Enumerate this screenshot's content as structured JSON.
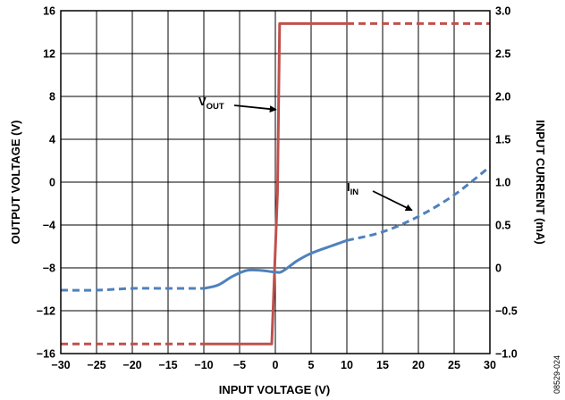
{
  "chart_data": {
    "type": "line",
    "title": "",
    "xlabel": "INPUT VOLTAGE (V)",
    "ylabel": "OUTPUT VOLTAGE (V)",
    "y2label": "INPUT CURRENT (mA)",
    "xlim": [
      -30,
      30
    ],
    "ylim": [
      -16,
      16
    ],
    "y2lim": [
      -1.0,
      3.0
    ],
    "grid": true,
    "x_ticks": [
      "−30",
      "−25",
      "−20",
      "−15",
      "−10",
      "−5",
      "0",
      "5",
      "10",
      "15",
      "20",
      "25",
      "30"
    ],
    "y_ticks": [
      "−16",
      "−12",
      "−8",
      "−4",
      "0",
      "4",
      "8",
      "12",
      "16"
    ],
    "y2_ticks": [
      "−1.0",
      "−0.5",
      "0",
      "0.5",
      "1.0",
      "1.5",
      "2.0",
      "2.5",
      "3.0"
    ],
    "series": [
      {
        "name": "VOUT",
        "axis": "left",
        "color": "#c0504d",
        "solid_range": [
          -10,
          10
        ],
        "x": [
          -30,
          -0.5,
          0.3,
          0.6,
          30
        ],
        "y": [
          -15.1,
          -15.1,
          -1.0,
          14.8,
          14.8
        ]
      },
      {
        "name": "IIN",
        "axis": "right",
        "color": "#4f81bd",
        "solid_range": [
          -10,
          10
        ],
        "x": [
          -30,
          -25,
          -20,
          -15,
          -10,
          -8,
          -6,
          -4,
          -2,
          0,
          1,
          3,
          5,
          8,
          10,
          15,
          20,
          25,
          30
        ],
        "y": [
          -0.26,
          -0.26,
          -0.24,
          -0.24,
          -0.24,
          -0.2,
          -0.1,
          -0.03,
          -0.03,
          -0.05,
          -0.04,
          0.08,
          0.17,
          0.26,
          0.32,
          0.42,
          0.6,
          0.85,
          1.18
        ]
      }
    ],
    "annotations": [
      {
        "label": "V",
        "sub": "OUT",
        "target_x": 0.6,
        "target_y": 6.6,
        "axis": "left"
      },
      {
        "label": "I",
        "sub": "IN",
        "target_x": 19.6,
        "target_y": 0.64,
        "axis": "right"
      }
    ],
    "figure_code": "08529-024"
  }
}
